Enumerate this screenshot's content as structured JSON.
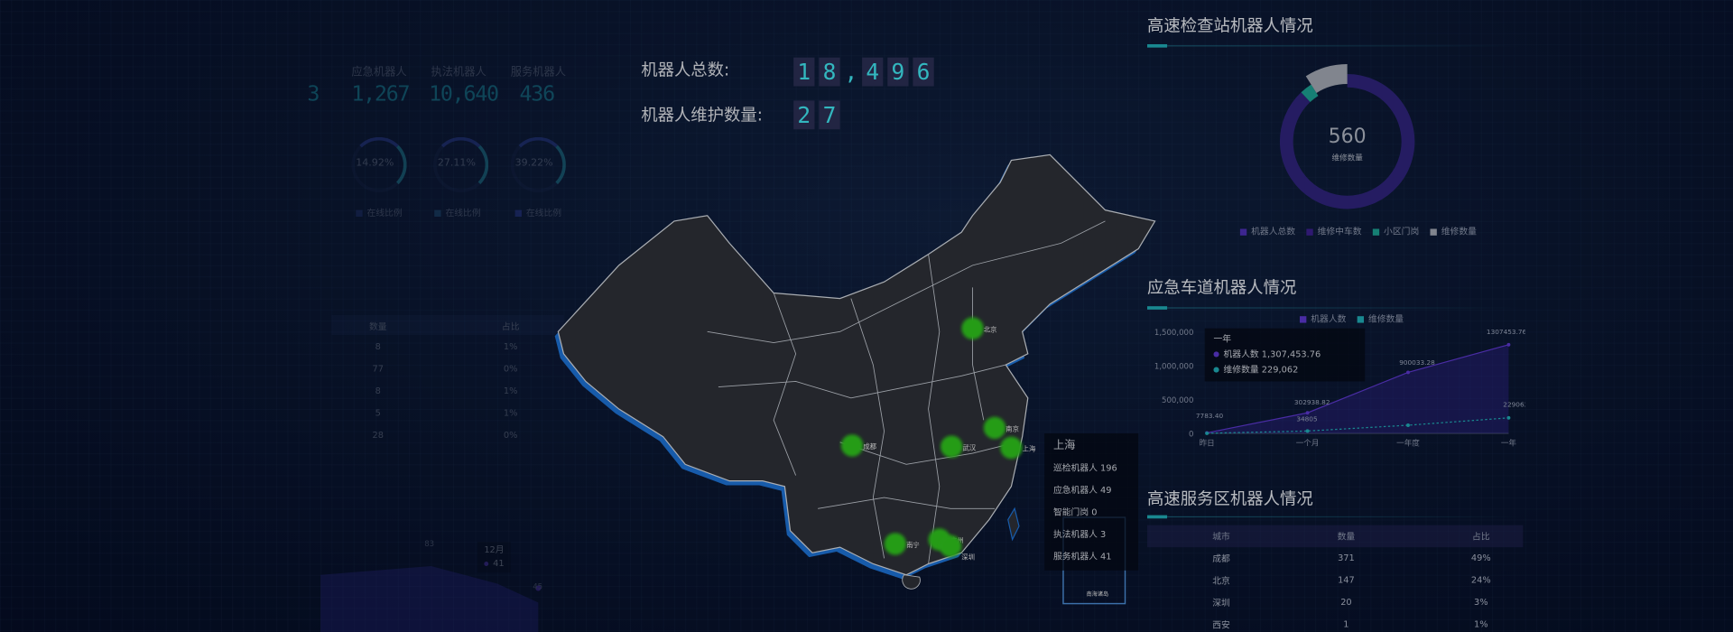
{
  "left_panel": {
    "partial_value": "3",
    "stats": [
      {
        "label": "应急机器人",
        "value": "1,267"
      },
      {
        "label": "执法机器人",
        "value": "10,640"
      },
      {
        "label": "服务机器人",
        "value": "436"
      }
    ],
    "gauges": [
      {
        "value": "14.92%",
        "legend": "在线比例"
      },
      {
        "value": "27.11%",
        "legend": "在线比例"
      },
      {
        "value": "39.22%",
        "legend": "在线比例"
      }
    ],
    "table": {
      "headers": [
        "数量",
        "占比"
      ],
      "rows": [
        [
          "8",
          "1%"
        ],
        [
          "77",
          "0%"
        ],
        [
          "8",
          "1%"
        ],
        [
          "5",
          "1%"
        ],
        [
          "28",
          "0%"
        ]
      ]
    },
    "area_chart": {
      "labels": [
        "83",
        "45"
      ],
      "tooltip": {
        "title": "12月",
        "value": "41"
      }
    }
  },
  "center": {
    "total_label": "机器人总数:",
    "total_digits": [
      "1",
      "8",
      ",",
      "4",
      "9",
      "6"
    ],
    "maintenance_label": "机器人维护数量:",
    "maintenance_digits": [
      "2",
      "7"
    ],
    "map": {
      "cities": [
        {
          "name": "北京"
        },
        {
          "name": "成都"
        },
        {
          "name": "武汉"
        },
        {
          "name": "南京"
        },
        {
          "name": "上海"
        },
        {
          "name": "广州"
        },
        {
          "name": "深圳"
        },
        {
          "name": "南宁"
        }
      ],
      "marker_color": "#2fbf1c",
      "tooltip": {
        "title": "上海",
        "rows": [
          "巡检机器人 196",
          "应急机器人 49",
          "智能门岗 0",
          "执法机器人 3",
          "服务机器人 41"
        ]
      },
      "inset_label": "南海诸岛"
    }
  },
  "checkpoint": {
    "title": "高速检查站机器人情况",
    "center_value": "560",
    "center_label": "维修数量",
    "chart_data": {
      "type": "pie",
      "values": [
        88,
        3,
        9
      ],
      "colors": [
        "#2e2378",
        "#1b9b8e",
        "#9ea3ae"
      ]
    },
    "legend": [
      {
        "label": "机器人总数",
        "color": "#4b2fb0"
      },
      {
        "label": "维修中车数",
        "color": "#3a1f8a"
      },
      {
        "label": "小区门岗",
        "color": "#1b9b8e"
      },
      {
        "label": "维修数量",
        "color": "#9ea3ae"
      }
    ]
  },
  "emergency": {
    "title": "应急车道机器人情况",
    "legend": [
      {
        "label": "机器人数",
        "color": "#5a36c8"
      },
      {
        "label": "维修数量",
        "color": "#1fa7b0"
      }
    ],
    "chart_data": {
      "type": "area",
      "categories": [
        "昨日",
        "一个月",
        "一年度",
        "一年"
      ],
      "series": [
        {
          "name": "机器人数",
          "values": [
            7783.4,
            302938.82,
            900033.28,
            1307453.76
          ]
        },
        {
          "name": "维修数量",
          "values": [
            1000,
            34805,
            120000,
            229062
          ]
        }
      ],
      "yticks": [
        "1,500,000",
        "1,000,000",
        "500,000",
        "0"
      ],
      "ylim": [
        0,
        1500000
      ]
    },
    "data_labels": [
      "7783.40",
      "302938.82",
      "34805",
      "900033.28",
      "1307453.76",
      "229062"
    ],
    "tooltip": {
      "title": "一年",
      "rows": [
        "机器人数 1,307,453.76",
        "维修数量 229,062"
      ]
    }
  },
  "service": {
    "title": "高速服务区机器人情况",
    "headers": [
      "城市",
      "数量",
      "占比"
    ],
    "rows": [
      [
        "成都",
        "371",
        "49%"
      ],
      [
        "北京",
        "147",
        "24%"
      ],
      [
        "深圳",
        "20",
        "3%"
      ],
      [
        "西安",
        "1",
        "1%"
      ]
    ]
  }
}
